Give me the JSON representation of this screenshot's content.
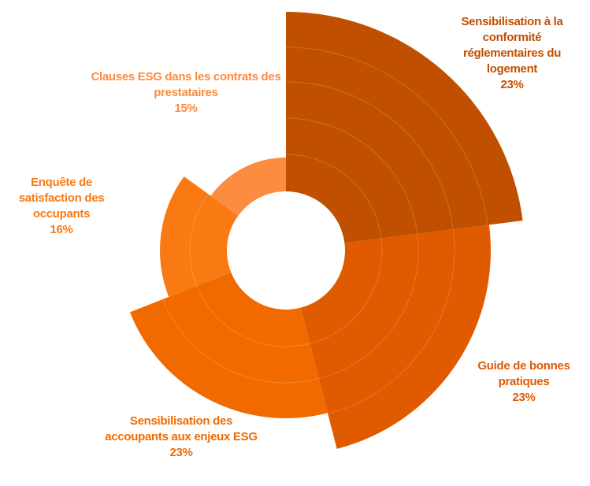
{
  "chart_data": {
    "type": "polar-area",
    "categories": [
      "Sensibilisation à la conformité réglementaires du logement",
      "Guide de bonnes pratiques",
      "Sensibilisation des accoupants aux enjeux ESG",
      "Enquête de satisfaction des occupants",
      "Clauses ESG dans les contrats des prestataires"
    ],
    "values": [
      23,
      23,
      23,
      16,
      15
    ],
    "value_labels": [
      "23%",
      "23%",
      "23%",
      "16%",
      "15%"
    ],
    "colors": [
      "#c05000",
      "#e05a00",
      "#f06a00",
      "#f97a12",
      "#fb8c40"
    ]
  }
}
